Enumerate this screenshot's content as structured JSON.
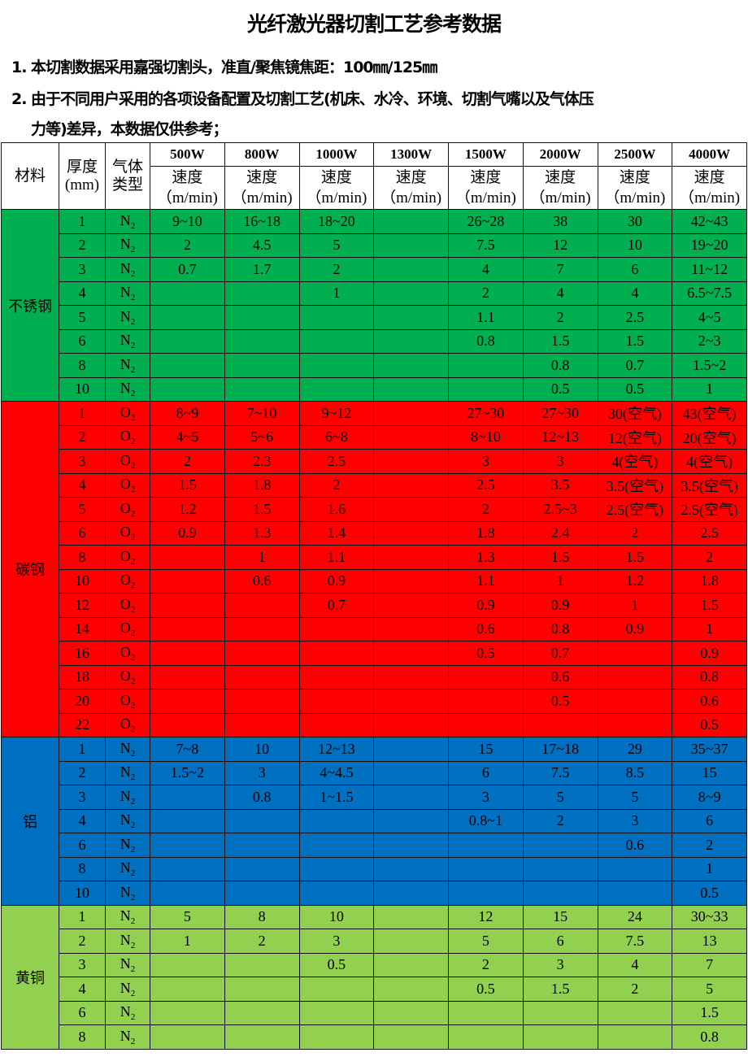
{
  "title": "光纤激光器切割工艺参考数据",
  "notes": [
    "1. 本切割数据采用嘉强切割头，准直/聚焦镜焦距：100㎜/125㎜",
    "2. 由于不同用户采用的各项设备配置及切割工艺(机床、水冷、环境、切割气嘴以及气体压",
    "力等)差异，本数据仅供参考；"
  ],
  "header": {
    "material": "材料",
    "thickness": "厚度(mm)",
    "gas": "气体类型",
    "speed": "速度",
    "unit": "（m/min)",
    "powers": [
      "500W",
      "800W",
      "1000W",
      "1300W",
      "1500W",
      "2000W",
      "2500W",
      "4000W"
    ]
  },
  "groups": [
    {
      "material": "不锈钢",
      "color": "#00b050",
      "rows": [
        [
          "1",
          "N2",
          "9~10",
          "16~18",
          "18~20",
          "",
          "26~28",
          "38",
          "30",
          "42~43"
        ],
        [
          "2",
          "N2",
          "2",
          "4.5",
          "5",
          "",
          "7.5",
          "12",
          "10",
          "19~20"
        ],
        [
          "3",
          "N2",
          "0.7",
          "1.7",
          "2",
          "",
          "4",
          "7",
          "6",
          "11~12"
        ],
        [
          "4",
          "N2",
          "",
          "",
          "1",
          "",
          "2",
          "4",
          "4",
          "6.5~7.5"
        ],
        [
          "5",
          "N2",
          "",
          "",
          "",
          "",
          "1.1",
          "2",
          "2.5",
          "4~5"
        ],
        [
          "6",
          "N2",
          "",
          "",
          "",
          "",
          "0.8",
          "1.5",
          "1.5",
          "2~3"
        ],
        [
          "8",
          "N2",
          "",
          "",
          "",
          "",
          "",
          "0.8",
          "0.7",
          "1.5~2"
        ],
        [
          "10",
          "N2",
          "",
          "",
          "",
          "",
          "",
          "0.5",
          "0.5",
          "1"
        ]
      ]
    },
    {
      "material": "碳钢",
      "color": "#ff0000",
      "rows": [
        [
          "1",
          "O2",
          "8~9",
          "7~10",
          "9~12",
          "",
          "27~30",
          "27~30",
          "30(空气)",
          "43(空气)"
        ],
        [
          "2",
          "O2",
          "4~5",
          "5~6",
          "6~8",
          "",
          "8~10",
          "12~13",
          "12(空气)",
          "20(空气)"
        ],
        [
          "3",
          "O2",
          "2",
          "2.3",
          "2.5",
          "",
          "3",
          "3",
          "4(空气)",
          "4(空气)"
        ],
        [
          "4",
          "O2",
          "1.5",
          "1.8",
          "2",
          "",
          "2.5",
          "3.5",
          "3.5(空气)",
          "3.5(空气)"
        ],
        [
          "5",
          "O2",
          "1.2",
          "1.5",
          "1.6",
          "",
          "2",
          "2.5~3",
          "2.5(空气)",
          "2.5(空气)"
        ],
        [
          "6",
          "O2",
          "0.9",
          "1.3",
          "1.4",
          "",
          "1.8",
          "2.4",
          "2",
          "2.5"
        ],
        [
          "8",
          "O2",
          "",
          "1",
          "1.1",
          "",
          "1.3",
          "1.5",
          "1.5",
          "2"
        ],
        [
          "10",
          "O2",
          "",
          "0.6",
          "0.9",
          "",
          "1.1",
          "1",
          "1.2",
          "1.8"
        ],
        [
          "12",
          "O2",
          "",
          "",
          "0.7",
          "",
          "0.9",
          "0.9",
          "1",
          "1.5"
        ],
        [
          "14",
          "O2",
          "",
          "",
          "",
          "",
          "0.6",
          "0.8",
          "0.9",
          "1"
        ],
        [
          "16",
          "O2",
          "",
          "",
          "",
          "",
          "0.5",
          "0.7",
          "",
          "0.9"
        ],
        [
          "18",
          "O2",
          "",
          "",
          "",
          "",
          "",
          "0.6",
          "",
          "0.8"
        ],
        [
          "20",
          "O2",
          "",
          "",
          "",
          "",
          "",
          "0.5",
          "",
          "0.6"
        ],
        [
          "22",
          "O2",
          "",
          "",
          "",
          "",
          "",
          "",
          "",
          "0.5"
        ]
      ]
    },
    {
      "material": "铝",
      "color": "#0070c0",
      "rows": [
        [
          "1",
          "N2",
          "7~8",
          "10",
          "12~13",
          "",
          "15",
          "17~18",
          "29",
          "35~37"
        ],
        [
          "2",
          "N2",
          "1.5~2",
          "3",
          "4~4.5",
          "",
          "6",
          "7.5",
          "8.5",
          "15"
        ],
        [
          "3",
          "N2",
          "",
          "0.8",
          "1~1.5",
          "",
          "3",
          "5",
          "5",
          "8~9"
        ],
        [
          "4",
          "N2",
          "",
          "",
          "",
          "",
          "0.8~1",
          "2",
          "3",
          "6"
        ],
        [
          "6",
          "N2",
          "",
          "",
          "",
          "",
          "",
          "",
          "0.6",
          "2"
        ],
        [
          "8",
          "N2",
          "",
          "",
          "",
          "",
          "",
          "",
          "",
          "1"
        ],
        [
          "10",
          "N2",
          "",
          "",
          "",
          "",
          "",
          "",
          "",
          "0.5"
        ]
      ]
    },
    {
      "material": "黄铜",
      "color": "#92d050",
      "rows": [
        [
          "1",
          "N2",
          "5",
          "8",
          "10",
          "",
          "12",
          "15",
          "24",
          "30~33"
        ],
        [
          "2",
          "N2",
          "1",
          "2",
          "3",
          "",
          "5",
          "6",
          "7.5",
          "13"
        ],
        [
          "3",
          "N2",
          "",
          "",
          "0.5",
          "",
          "2",
          "3",
          "4",
          "7"
        ],
        [
          "4",
          "N2",
          "",
          "",
          "",
          "",
          "0.5",
          "1.5",
          "2",
          "5"
        ],
        [
          "6",
          "N2",
          "",
          "",
          "",
          "",
          "",
          "",
          "",
          "1.5"
        ],
        [
          "8",
          "N2",
          "",
          "",
          "",
          "",
          "",
          "",
          "",
          "0.8"
        ]
      ]
    }
  ]
}
